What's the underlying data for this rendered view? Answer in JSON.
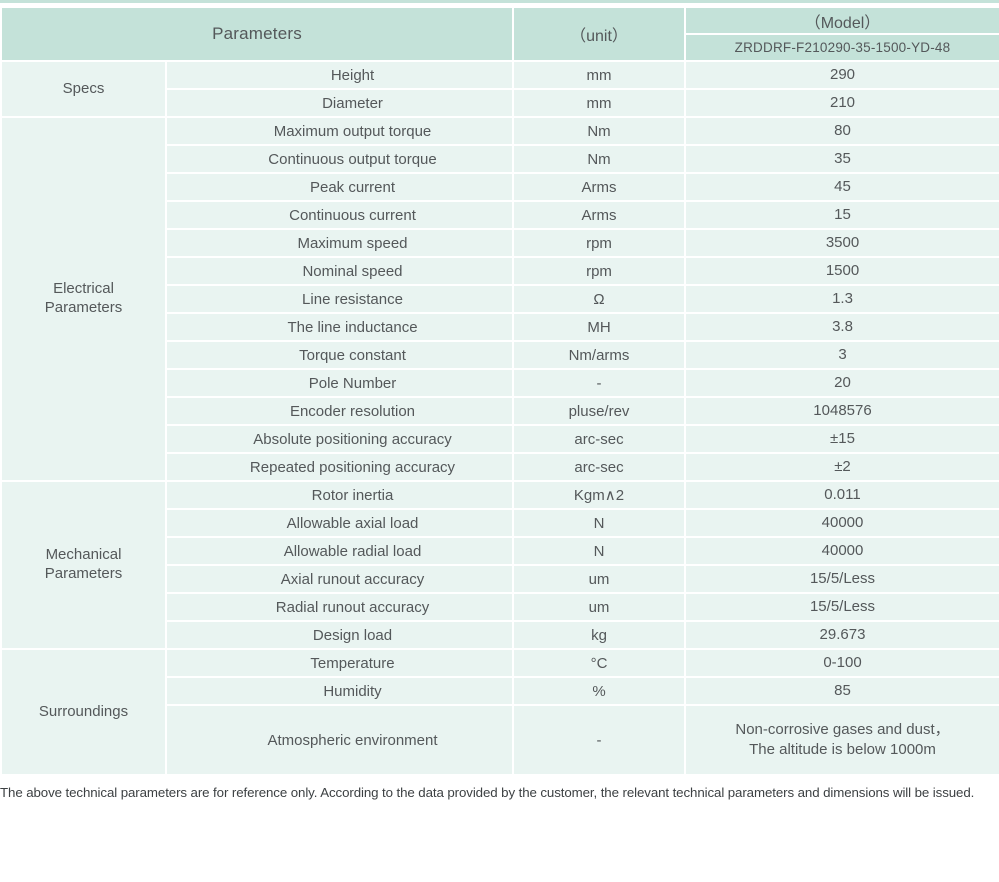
{
  "colors": {
    "header_bg": "#c4e2d9",
    "row_bg": "#e9f4f1",
    "text": "#54585a"
  },
  "header": {
    "parameters_label": "Parameters",
    "unit_label": "（unit）",
    "model_label": "（Model）",
    "model_number": "ZRDDRF-F210290-35-1500-YD-48"
  },
  "sections": [
    {
      "name": "Specs",
      "rows": [
        {
          "param": "Height",
          "unit": "mm",
          "value": "290"
        },
        {
          "param": "Diameter",
          "unit": "mm",
          "value": "210"
        }
      ]
    },
    {
      "name": "Electrical\nParameters",
      "rows": [
        {
          "param": "Maximum output torque",
          "unit": "Nm",
          "value": "80"
        },
        {
          "param": "Continuous output torque",
          "unit": "Nm",
          "value": "35"
        },
        {
          "param": "Peak current",
          "unit": "Arms",
          "value": "45"
        },
        {
          "param": "Continuous current",
          "unit": "Arms",
          "value": "15"
        },
        {
          "param": "Maximum speed",
          "unit": "rpm",
          "value": "3500"
        },
        {
          "param": "Nominal speed",
          "unit": "rpm",
          "value": "1500"
        },
        {
          "param": "Line resistance",
          "unit": "Ω",
          "value": "1.3"
        },
        {
          "param": "The line inductance",
          "unit": "MH",
          "value": "3.8"
        },
        {
          "param": "Torque constant",
          "unit": "Nm/arms",
          "value": "3"
        },
        {
          "param": "Pole Number",
          "unit": "-",
          "value": "20"
        },
        {
          "param": "Encoder resolution",
          "unit": "pluse/rev",
          "value": "1048576"
        },
        {
          "param": "Absolute positioning accuracy",
          "unit": "arc-sec",
          "value": "±15"
        },
        {
          "param": "Repeated positioning accuracy",
          "unit": "arc-sec",
          "value": "±2"
        }
      ]
    },
    {
      "name": "Mechanical\nParameters",
      "rows": [
        {
          "param": "Rotor inertia",
          "unit": "Kgm∧2",
          "value": "0.011"
        },
        {
          "param": "Allowable axial load",
          "unit": "N",
          "value": "40000"
        },
        {
          "param": "Allowable radial load",
          "unit": "N",
          "value": "40000"
        },
        {
          "param": "Axial runout accuracy",
          "unit": "um",
          "value": "15/5/Less"
        },
        {
          "param": "Radial runout accuracy",
          "unit": "um",
          "value": "15/5/Less"
        },
        {
          "param": "Design load",
          "unit": "kg",
          "value": "29.673"
        }
      ]
    },
    {
      "name": "Surroundings",
      "rows": [
        {
          "param": "Temperature",
          "unit": "°C",
          "value": "0-100"
        },
        {
          "param": "Humidity",
          "unit": "%",
          "value": "85"
        },
        {
          "param": "Atmospheric environment",
          "unit": "-",
          "value": "Non-corrosive gases and dust，\nThe altitude is below 1000m"
        }
      ]
    }
  ],
  "footer": {
    "note": "The above technical parameters are for reference only. According to the data provided by the customer, the relevant technical parameters and dimensions will be issued."
  }
}
